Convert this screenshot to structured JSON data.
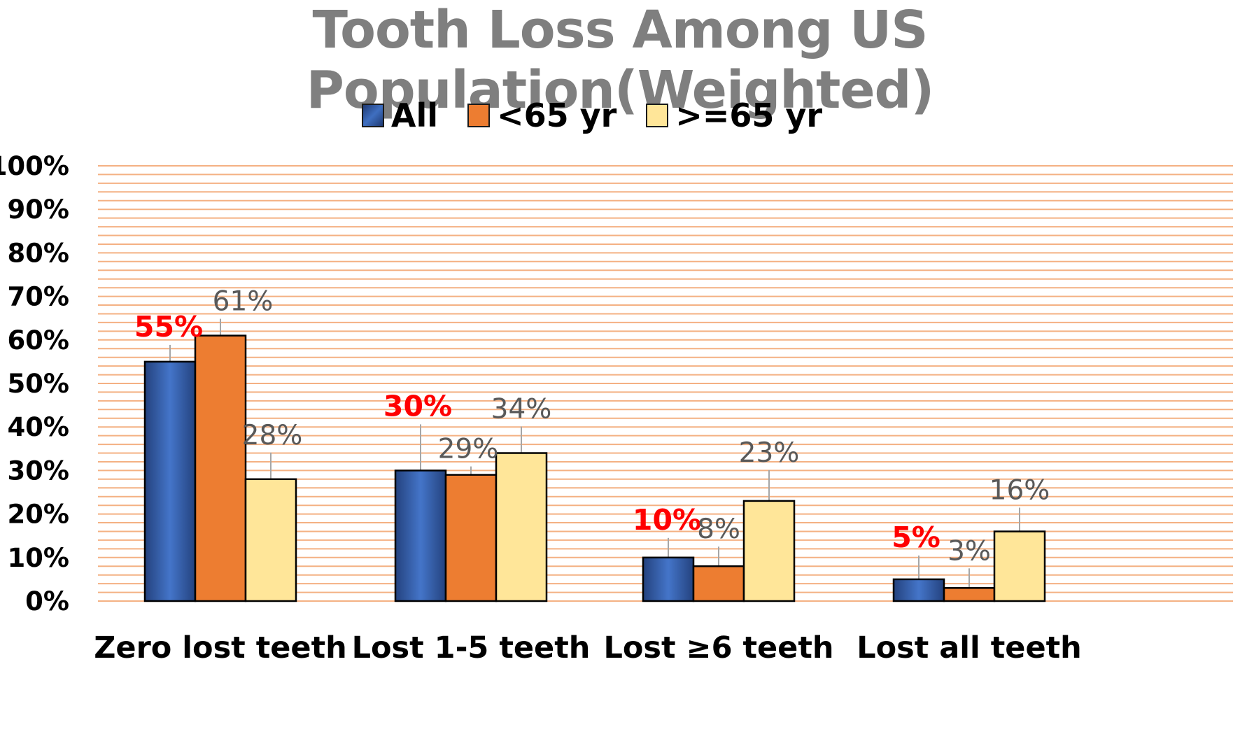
{
  "chart_data": {
    "type": "bar",
    "title": "Tooth Loss Among US Population(Weighted)",
    "xlabel": "",
    "ylabel": "",
    "ylim": [
      0,
      100
    ],
    "y_ticks": [
      "0%",
      "10%",
      "20%",
      "30%",
      "40%",
      "50%",
      "60%",
      "70%",
      "80%",
      "90%",
      "100%"
    ],
    "categories": [
      "Zero lost teeth",
      "Lost 1-5 teeth",
      "Lost ≥6 teeth",
      "Lost all teeth"
    ],
    "series": [
      {
        "name": "All",
        "values": [
          55,
          30,
          10,
          5
        ],
        "labels": [
          "55%",
          "30%",
          "10%",
          "5%"
        ],
        "color": "#2f5597",
        "highlight_color": "#ff0000"
      },
      {
        "name": "<65 yr",
        "values": [
          61,
          29,
          8,
          3
        ],
        "labels": [
          "61%",
          "29%",
          "8%",
          "3%"
        ],
        "color": "#ed7d31"
      },
      {
        "name": ">=65 yr",
        "values": [
          28,
          34,
          23,
          16
        ],
        "labels": [
          "28%",
          "34%",
          "23%",
          "16%"
        ],
        "color": "#ffe699"
      }
    ],
    "legend_position": "top-center",
    "grid": true,
    "grid_color": "#f4b183"
  }
}
